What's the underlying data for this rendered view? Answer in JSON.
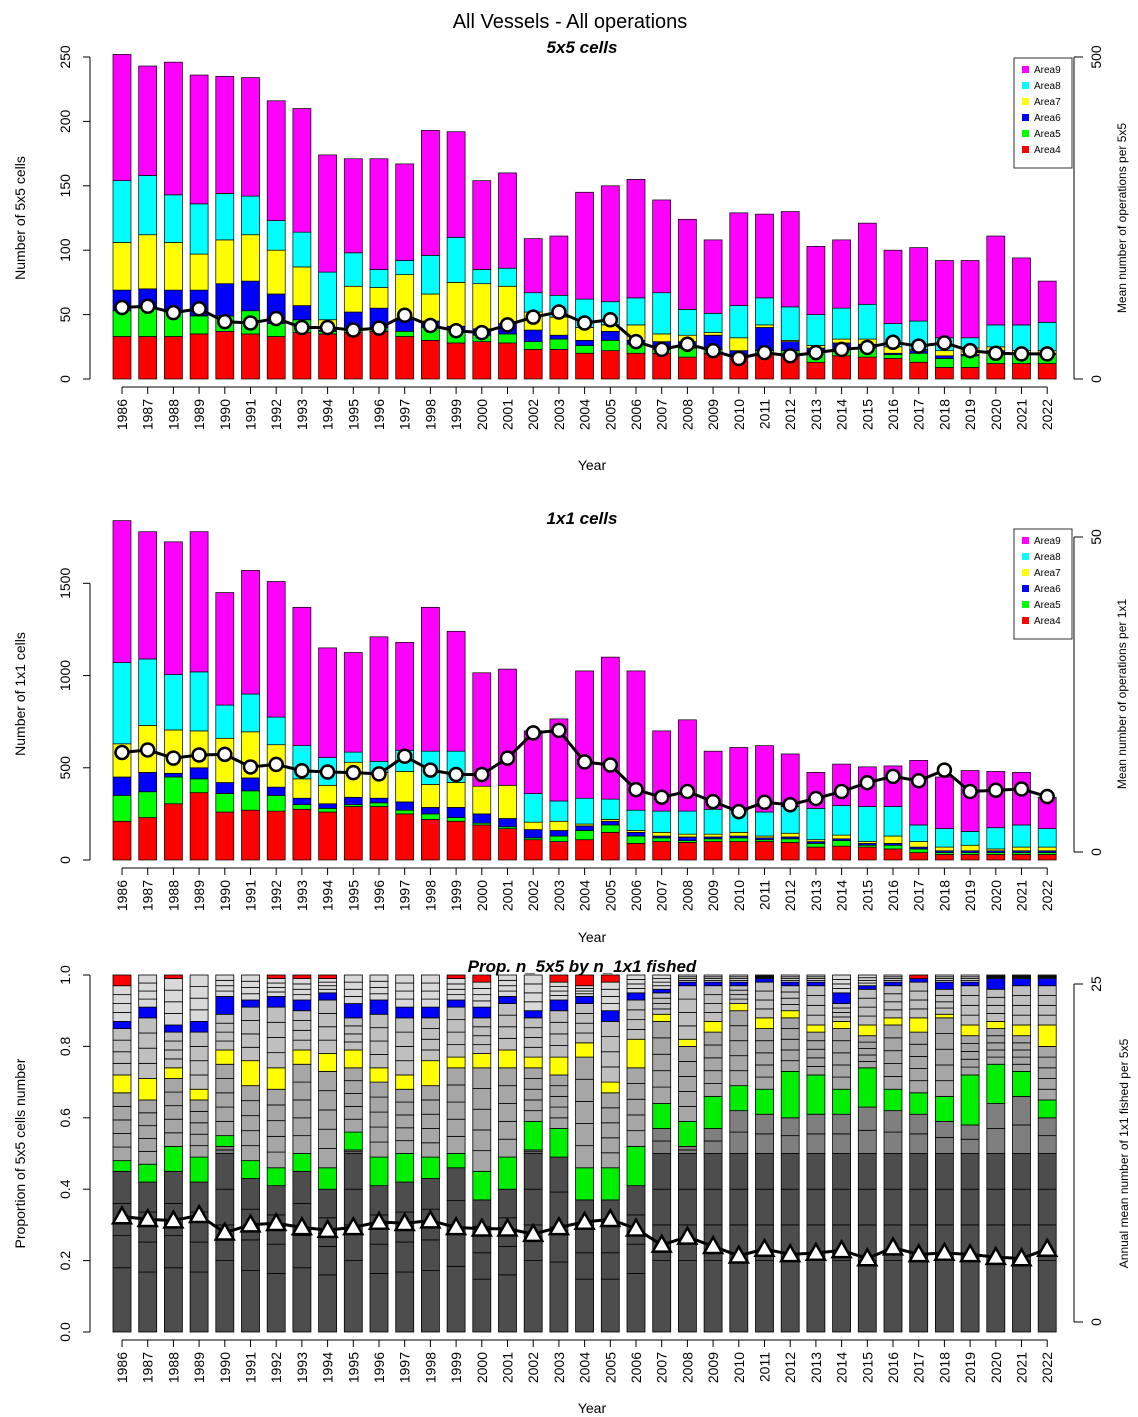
{
  "figure": {
    "title": "All Vessels - All operations"
  },
  "chart_data": [
    {
      "type": "bar",
      "subtype": "stacked bar with line overlay",
      "title": "5x5 cells",
      "xlabel": "Year",
      "ylabel": "Number of 5x5 cells",
      "ylabel_right": "Mean number of operations per 5x5",
      "ylim": [
        0,
        250
      ],
      "yticks": [
        "0",
        "50",
        "100",
        "150",
        "200",
        "250"
      ],
      "ylim_right": [
        0,
        500
      ],
      "yticks_right": [
        "0",
        "500"
      ],
      "categories": [
        "1986",
        "1987",
        "1988",
        "1989",
        "1990",
        "1991",
        "1992",
        "1993",
        "1994",
        "1995",
        "1996",
        "1997",
        "1998",
        "1999",
        "2000",
        "2001",
        "2002",
        "2003",
        "2004",
        "2005",
        "2006",
        "2007",
        "2008",
        "2009",
        "2010",
        "2011",
        "2012",
        "2013",
        "2014",
        "2015",
        "2016",
        "2017",
        "2018",
        "2019",
        "2020",
        "2021",
        "2022"
      ],
      "legend": {
        "position": "top-right",
        "entries": [
          "Area9",
          "Area8",
          "Area7",
          "Area6",
          "Area5",
          "Area4"
        ]
      },
      "series": [
        {
          "name": "Area4",
          "color": "#ff0000",
          "values": [
            33,
            33,
            33,
            35,
            37,
            35,
            33,
            36,
            35,
            36,
            37,
            33,
            30,
            28,
            29,
            28,
            23,
            23,
            20,
            22,
            20,
            20,
            17,
            20,
            17,
            19,
            18,
            13,
            18,
            17,
            16,
            13,
            9,
            9,
            12,
            12,
            12
          ]
        },
        {
          "name": "Area5",
          "color": "#00ff00",
          "values": [
            20,
            22,
            20,
            14,
            12,
            18,
            10,
            10,
            2,
            2,
            3,
            4,
            10,
            10,
            5,
            7,
            6,
            8,
            6,
            8,
            7,
            3,
            7,
            3,
            2,
            3,
            4,
            8,
            5,
            7,
            3,
            7,
            7,
            9,
            9,
            7,
            7
          ]
        },
        {
          "name": "Area6",
          "color": "#0000ff",
          "values": [
            16,
            15,
            16,
            20,
            25,
            23,
            23,
            11,
            1,
            14,
            15,
            10,
            5,
            3,
            5,
            8,
            9,
            3,
            4,
            7,
            3,
            6,
            5,
            11,
            3,
            18,
            7,
            3,
            5,
            3,
            1,
            2,
            2,
            1,
            1,
            1,
            1
          ]
        },
        {
          "name": "Area7",
          "color": "#ffff00",
          "values": [
            37,
            42,
            37,
            28,
            34,
            36,
            34,
            30,
            8,
            20,
            16,
            34,
            21,
            34,
            35,
            29,
            14,
            14,
            10,
            5,
            12,
            6,
            5,
            2,
            10,
            2,
            1,
            2,
            3,
            4,
            5,
            1,
            4,
            5,
            3,
            2,
            2
          ]
        },
        {
          "name": "Area8",
          "color": "#00ffff",
          "values": [
            48,
            46,
            37,
            39,
            36,
            30,
            23,
            27,
            37,
            26,
            14,
            11,
            30,
            35,
            11,
            14,
            15,
            17,
            22,
            18,
            21,
            32,
            20,
            15,
            25,
            21,
            26,
            24,
            24,
            27,
            18,
            22,
            10,
            8,
            17,
            20,
            22
          ]
        },
        {
          "name": "Area9",
          "color": "#ff00ff",
          "values": [
            98,
            85,
            103,
            100,
            91,
            92,
            93,
            96,
            91,
            73,
            86,
            75,
            97,
            82,
            69,
            74,
            42,
            46,
            83,
            90,
            92,
            72,
            70,
            57,
            72,
            65,
            74,
            53,
            53,
            63,
            57,
            57,
            60,
            60,
            69,
            52,
            32
          ]
        }
      ],
      "line": {
        "name": "Mean number of operations per 5x5",
        "axis": "right",
        "marker": "circle",
        "values": [
          111,
          113,
          103,
          109,
          89,
          87,
          94,
          80,
          80,
          76,
          79,
          99,
          83,
          75,
          72,
          84,
          96,
          104,
          87,
          92,
          58,
          46,
          54,
          44,
          32,
          41,
          36,
          41,
          46,
          49,
          57,
          51,
          56,
          44,
          40,
          39,
          39
        ]
      }
    },
    {
      "type": "bar",
      "subtype": "stacked bar with line overlay",
      "title": "1x1 cells",
      "xlabel": "Year",
      "ylabel": "Number of 1x1 cells",
      "ylabel_right": "Mean number of operations per 1x1",
      "ylim": [
        0,
        1800
      ],
      "yticks": [
        "0",
        "500",
        "1000",
        "1500"
      ],
      "ylim_right": [
        0,
        50
      ],
      "yticks_right": [
        "0",
        "50"
      ],
      "categories": [
        "1986",
        "1987",
        "1988",
        "1989",
        "1990",
        "1991",
        "1992",
        "1993",
        "1994",
        "1995",
        "1996",
        "1997",
        "1998",
        "1999",
        "2000",
        "2001",
        "2002",
        "2003",
        "2004",
        "2005",
        "2006",
        "2007",
        "2008",
        "2009",
        "2010",
        "2011",
        "2012",
        "2013",
        "2014",
        "2015",
        "2016",
        "2017",
        "2018",
        "2019",
        "2020",
        "2021",
        "2022"
      ],
      "legend": {
        "position": "top-right",
        "entries": [
          "Area9",
          "Area8",
          "Area7",
          "Area6",
          "Area5",
          "Area4"
        ]
      },
      "series": [
        {
          "name": "Area4",
          "color": "#ff0000",
          "values": [
            210,
            230,
            305,
            365,
            260,
            270,
            265,
            275,
            260,
            290,
            290,
            250,
            220,
            210,
            190,
            170,
            110,
            100,
            110,
            150,
            90,
            100,
            95,
            100,
            100,
            100,
            95,
            70,
            75,
            70,
            60,
            40,
            30,
            30,
            30,
            30,
            30
          ]
        },
        {
          "name": "Area5",
          "color": "#00ff00",
          "values": [
            140,
            140,
            145,
            75,
            100,
            105,
            85,
            25,
            20,
            10,
            20,
            20,
            30,
            20,
            10,
            10,
            10,
            30,
            50,
            40,
            40,
            20,
            10,
            15,
            20,
            10,
            20,
            20,
            30,
            10,
            20,
            20,
            10,
            10,
            10,
            10,
            10
          ]
        },
        {
          "name": "Area6",
          "color": "#0000ff",
          "values": [
            100,
            105,
            20,
            60,
            60,
            70,
            45,
            35,
            25,
            40,
            25,
            45,
            35,
            55,
            50,
            45,
            45,
            30,
            25,
            20,
            20,
            10,
            20,
            10,
            10,
            10,
            10,
            10,
            10,
            10,
            10,
            10,
            10,
            10,
            10,
            10,
            10
          ]
        },
        {
          "name": "Area7",
          "color": "#ffff00",
          "values": [
            180,
            255,
            235,
            200,
            240,
            250,
            230,
            105,
            100,
            190,
            140,
            165,
            125,
            135,
            150,
            180,
            40,
            50,
            10,
            10,
            10,
            20,
            15,
            15,
            20,
            10,
            20,
            10,
            20,
            10,
            40,
            30,
            20,
            30,
            10,
            20,
            20
          ]
        },
        {
          "name": "Area8",
          "color": "#00ffff",
          "values": [
            440,
            360,
            300,
            320,
            180,
            205,
            150,
            180,
            150,
            55,
            60,
            115,
            180,
            170,
            0,
            0,
            155,
            110,
            140,
            110,
            110,
            115,
            125,
            135,
            120,
            130,
            145,
            170,
            160,
            190,
            160,
            90,
            100,
            75,
            115,
            120,
            100
          ]
        },
        {
          "name": "Area9",
          "color": "#ff00ff",
          "values": [
            770,
            690,
            720,
            760,
            610,
            670,
            735,
            750,
            595,
            540,
            675,
            585,
            780,
            650,
            615,
            630,
            340,
            445,
            690,
            770,
            755,
            435,
            495,
            315,
            340,
            360,
            285,
            195,
            225,
            215,
            220,
            350,
            280,
            330,
            305,
            285,
            170
          ]
        }
      ],
      "line": {
        "name": "Mean number of operations per 1x1",
        "axis": "right",
        "marker": "circle",
        "values": [
          15.8,
          16.2,
          14.9,
          15.4,
          15.5,
          13.5,
          13.9,
          12.9,
          12.7,
          12.6,
          12.4,
          15.2,
          13.0,
          12.3,
          12.3,
          14.9,
          18.9,
          19.3,
          14.3,
          13.8,
          9.9,
          8.7,
          9.6,
          8.0,
          6.4,
          7.9,
          7.5,
          8.5,
          9.6,
          11.0,
          12.0,
          11.3,
          13.0,
          9.6,
          9.8,
          10.0,
          8.8
        ]
      }
    },
    {
      "type": "bar",
      "subtype": "stacked proportion bar with line overlay",
      "title": "Prop. n_5x5 by n_1x1 fished",
      "xlabel": "Year",
      "ylabel": "Proportion of 5x5 cells number",
      "ylabel_right": "Annual mean number of 1x1 fished per 5x5",
      "ylim": [
        0,
        1
      ],
      "yticks": [
        "0.0",
        "0.2",
        "0.4",
        "0.6",
        "0.8",
        "1.0"
      ],
      "ylim_right": [
        0,
        25
      ],
      "yticks_right": [
        "0",
        "25"
      ],
      "categories": [
        "1986",
        "1987",
        "1988",
        "1989",
        "1990",
        "1991",
        "1992",
        "1993",
        "1994",
        "1995",
        "1996",
        "1997",
        "1998",
        "1999",
        "2000",
        "2001",
        "2002",
        "2003",
        "2004",
        "2005",
        "2006",
        "2007",
        "2008",
        "2009",
        "2010",
        "2011",
        "2012",
        "2013",
        "2014",
        "2015",
        "2016",
        "2017",
        "2018",
        "2019",
        "2020",
        "2021",
        "2022"
      ],
      "green_band": {
        "color": "#00ee00",
        "bottoms": [
          0.45,
          0.42,
          0.45,
          0.42,
          0.52,
          0.43,
          0.41,
          0.45,
          0.4,
          0.51,
          0.41,
          0.42,
          0.43,
          0.46,
          0.37,
          0.4,
          0.51,
          0.49,
          0.37,
          0.37,
          0.41,
          0.57,
          0.52,
          0.57,
          0.62,
          0.61,
          0.6,
          0.61,
          0.61,
          0.63,
          0.62,
          0.61,
          0.59,
          0.58,
          0.64,
          0.66,
          0.6
        ],
        "tops": [
          0.48,
          0.47,
          0.52,
          0.49,
          0.55,
          0.48,
          0.46,
          0.5,
          0.46,
          0.56,
          0.49,
          0.5,
          0.49,
          0.5,
          0.45,
          0.49,
          0.59,
          0.57,
          0.46,
          0.46,
          0.52,
          0.64,
          0.59,
          0.66,
          0.69,
          0.68,
          0.73,
          0.72,
          0.68,
          0.74,
          0.68,
          0.67,
          0.66,
          0.72,
          0.75,
          0.73,
          0.65
        ]
      },
      "yellow_band": {
        "color": "#ffff00",
        "bottoms": [
          0.67,
          0.65,
          0.71,
          0.65,
          0.75,
          0.69,
          0.68,
          0.75,
          0.73,
          0.74,
          0.7,
          0.68,
          0.69,
          0.74,
          0.74,
          0.74,
          0.74,
          0.72,
          0.77,
          0.67,
          0.74,
          0.87,
          0.8,
          0.84,
          0.9,
          0.85,
          0.88,
          0.84,
          0.85,
          0.83,
          0.86,
          0.84,
          0.88,
          0.83,
          0.85,
          0.83,
          0.8
        ],
        "tops": [
          0.72,
          0.71,
          0.74,
          0.68,
          0.79,
          0.76,
          0.74,
          0.79,
          0.78,
          0.79,
          0.74,
          0.72,
          0.76,
          0.77,
          0.78,
          0.79,
          0.77,
          0.77,
          0.81,
          0.7,
          0.82,
          0.89,
          0.82,
          0.87,
          0.92,
          0.88,
          0.9,
          0.86,
          0.87,
          0.86,
          0.88,
          0.88,
          0.89,
          0.86,
          0.87,
          0.86,
          0.86
        ]
      },
      "blue_band": {
        "color": "#0000ff",
        "bottoms": [
          0.85,
          0.88,
          0.84,
          0.84,
          0.89,
          0.91,
          0.91,
          0.9,
          0.93,
          0.88,
          0.89,
          0.88,
          0.88,
          0.91,
          0.88,
          0.92,
          0.88,
          0.9,
          0.92,
          0.87,
          0.93,
          0.95,
          0.97,
          0.97,
          0.97,
          0.98,
          0.97,
          0.97,
          0.92,
          0.96,
          0.97,
          0.98,
          0.96,
          0.97,
          0.96,
          0.97,
          0.97
        ],
        "tops": [
          0.87,
          0.91,
          0.86,
          0.87,
          0.94,
          0.93,
          0.94,
          0.93,
          0.95,
          0.92,
          0.93,
          0.91,
          0.91,
          0.93,
          0.91,
          0.94,
          0.9,
          0.93,
          0.94,
          0.9,
          0.95,
          0.96,
          0.98,
          0.98,
          0.98,
          0.99,
          0.98,
          0.98,
          0.95,
          0.97,
          0.98,
          0.99,
          0.98,
          0.98,
          0.99,
          0.99,
          0.99
        ]
      },
      "red_top": [
        0.03,
        0,
        0.01,
        0,
        0,
        0,
        0.01,
        0.01,
        0.01,
        0,
        0,
        0,
        0,
        0.01,
        0.02,
        0,
        0,
        0.02,
        0.03,
        0.02,
        0,
        0,
        0,
        0,
        0,
        0,
        0,
        0,
        0,
        0,
        0,
        0.01,
        0,
        0,
        0,
        0,
        0
      ],
      "line": {
        "name": "Annual mean number of 1x1 fished per 5x5",
        "axis": "right",
        "marker": "triangle",
        "values": [
          7.8,
          7.6,
          7.5,
          7.9,
          6.6,
          7.2,
          7.3,
          7.0,
          6.8,
          7.0,
          7.4,
          7.3,
          7.5,
          7.0,
          6.9,
          6.9,
          6.5,
          7.0,
          7.4,
          7.6,
          6.9,
          5.7,
          6.3,
          5.6,
          4.9,
          5.4,
          5.0,
          5.1,
          5.3,
          4.7,
          5.5,
          5.0,
          5.1,
          5.0,
          4.8,
          4.7,
          5.4
        ]
      }
    }
  ]
}
